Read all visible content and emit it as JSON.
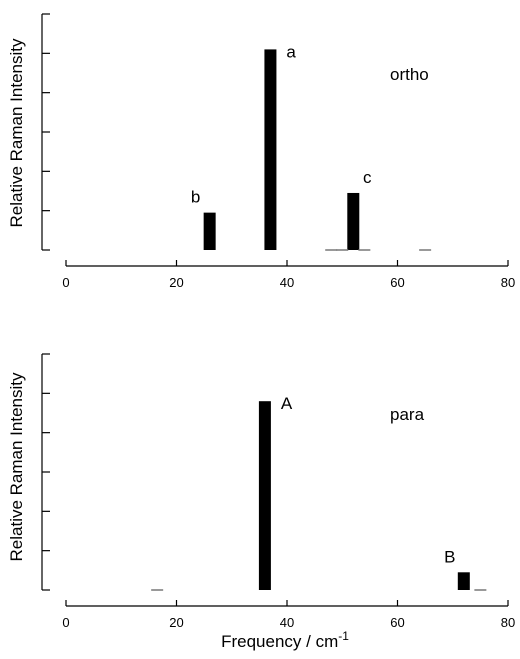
{
  "chart_data": [
    {
      "type": "bar",
      "panel_label": "ortho",
      "ylabel": "Relative Raman Intensity",
      "xlabel": "",
      "xlim": [
        0,
        80
      ],
      "xticks": [
        0,
        20,
        40,
        60,
        80
      ],
      "ylim": [
        0,
        1.2
      ],
      "yticks": [
        0,
        0.2,
        0.4,
        0.6,
        0.8,
        1.0,
        1.2
      ],
      "bars": [
        {
          "x": 26,
          "value": 0.19,
          "label": "b"
        },
        {
          "x": 37,
          "value": 1.02,
          "label": "a"
        },
        {
          "x": 52,
          "value": 0.29,
          "label": "c"
        },
        {
          "x": 48,
          "value": 0.005,
          "label": ""
        },
        {
          "x": 50,
          "value": 0.005,
          "label": ""
        },
        {
          "x": 54,
          "value": 0.005,
          "label": ""
        },
        {
          "x": 65,
          "value": 0.005,
          "label": ""
        }
      ]
    },
    {
      "type": "bar",
      "panel_label": "para",
      "ylabel": "Relative Raman Intensity",
      "xlabel": "Frequency / cm",
      "xlabel_superscript": "-1",
      "xlim": [
        0,
        80
      ],
      "xticks": [
        0,
        20,
        40,
        60,
        80
      ],
      "ylim": [
        0,
        1.2
      ],
      "yticks": [
        0,
        0.2,
        0.4,
        0.6,
        0.8,
        1.0,
        1.2
      ],
      "bars": [
        {
          "x": 36,
          "value": 0.96,
          "label": "A"
        },
        {
          "x": 72,
          "value": 0.09,
          "label": "B"
        },
        {
          "x": 16.5,
          "value": 0.005,
          "label": ""
        },
        {
          "x": 75,
          "value": 0.005,
          "label": ""
        }
      ]
    }
  ]
}
